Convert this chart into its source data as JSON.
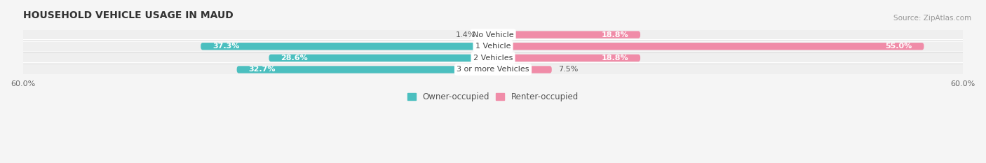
{
  "title": "HOUSEHOLD VEHICLE USAGE IN MAUD",
  "source": "Source: ZipAtlas.com",
  "categories": [
    "No Vehicle",
    "1 Vehicle",
    "2 Vehicles",
    "3 or more Vehicles"
  ],
  "owner_values": [
    1.4,
    37.3,
    28.6,
    32.7
  ],
  "renter_values": [
    18.8,
    55.0,
    18.8,
    7.5
  ],
  "owner_color": "#4BBFBF",
  "renter_color": "#F08CA8",
  "owner_label": "Owner-occupied",
  "renter_label": "Renter-occupied",
  "xlim": [
    -60,
    60
  ],
  "bar_height": 0.62,
  "bg_color": "#f5f5f5",
  "bar_bg_color": "#e8e8e8",
  "row_bg_color": "#efefef",
  "title_fontsize": 10,
  "source_fontsize": 7.5,
  "value_fontsize": 8,
  "category_fontsize": 8,
  "legend_fontsize": 8.5,
  "owner_label_inside_threshold": 5,
  "renter_label_inside_threshold": 10
}
